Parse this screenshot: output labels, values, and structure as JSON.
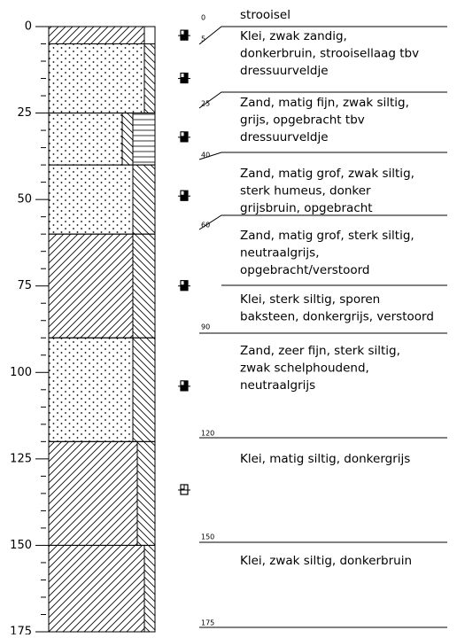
{
  "axis": {
    "ylim": [
      0,
      175
    ],
    "yticks": [
      0,
      25,
      50,
      75,
      100,
      125,
      150,
      175
    ],
    "minor_ticks": [
      5,
      10,
      15,
      20,
      30,
      35,
      40,
      45,
      55,
      60,
      65,
      70,
      80,
      85,
      90,
      95,
      105,
      110,
      115,
      120,
      130,
      135,
      140,
      145,
      155,
      160,
      165,
      170
    ]
  },
  "layers": [
    {
      "top": 0,
      "bottom": 5,
      "patterns": [
        "clay",
        "none"
      ]
    },
    {
      "top": 5,
      "bottom": 25,
      "patterns": [
        "sand",
        "silt"
      ]
    },
    {
      "top": 25,
      "bottom": 40,
      "patterns": [
        "sand",
        "silt",
        "humus"
      ]
    },
    {
      "top": 40,
      "bottom": 60,
      "patterns": [
        "sand",
        "silt"
      ]
    },
    {
      "top": 60,
      "bottom": 90,
      "patterns": [
        "clay",
        "silt"
      ]
    },
    {
      "top": 90,
      "bottom": 120,
      "patterns": [
        "sand",
        "silt"
      ]
    },
    {
      "top": 120,
      "bottom": 150,
      "patterns": [
        "clay",
        "silt"
      ]
    },
    {
      "top": 150,
      "bottom": 175,
      "patterns": [
        "clay",
        "silt"
      ]
    }
  ],
  "samples": [
    {
      "depth": 2.6,
      "filled": true
    },
    {
      "depth": 15,
      "filled": true
    },
    {
      "depth": 32,
      "filled": true
    },
    {
      "depth": 49,
      "filled": true
    },
    {
      "depth": 75,
      "filled": true
    },
    {
      "depth": 104,
      "filled": true
    },
    {
      "depth": 134,
      "filled": false
    }
  ],
  "descriptions": [
    {
      "depth": 0,
      "lines": [
        "strooisel"
      ]
    },
    {
      "depth": 5,
      "lines": [
        "Klei, zwak zandig,",
        "donkerbruin, strooisellaag tbv",
        "dressuurveldje"
      ]
    },
    {
      "depth": 25,
      "lines": [
        "Zand, matig fijn, zwak siltig,",
        "grijs, opgebracht tbv",
        "dressuurveldje"
      ]
    },
    {
      "depth": 40,
      "lines": [
        "Zand, matig grof, zwak siltig,",
        "sterk humeus, donker",
        "grijsbruin, opgebracht"
      ]
    },
    {
      "depth": 60,
      "lines": [
        "Zand, matig grof, sterk siltig,",
        "neutraalgrijs,",
        "opgebracht/verstoord"
      ]
    },
    {
      "lines": [
        "Klei, sterk siltig, sporen",
        "baksteen, donkergrijs, verstoord"
      ]
    },
    {
      "depth": 90,
      "lines": [
        "Zand, zeer fijn, sterk siltig,",
        "zwak schelphoudend,",
        "neutraalgrijs"
      ]
    },
    {
      "depth": 120,
      "lines": [
        "Klei, matig siltig, donkergrijs"
      ]
    },
    {
      "depth": 150,
      "lines": [
        "Klei, zwak siltig, donkerbruin"
      ]
    },
    {
      "depth": 175,
      "lines": []
    }
  ]
}
